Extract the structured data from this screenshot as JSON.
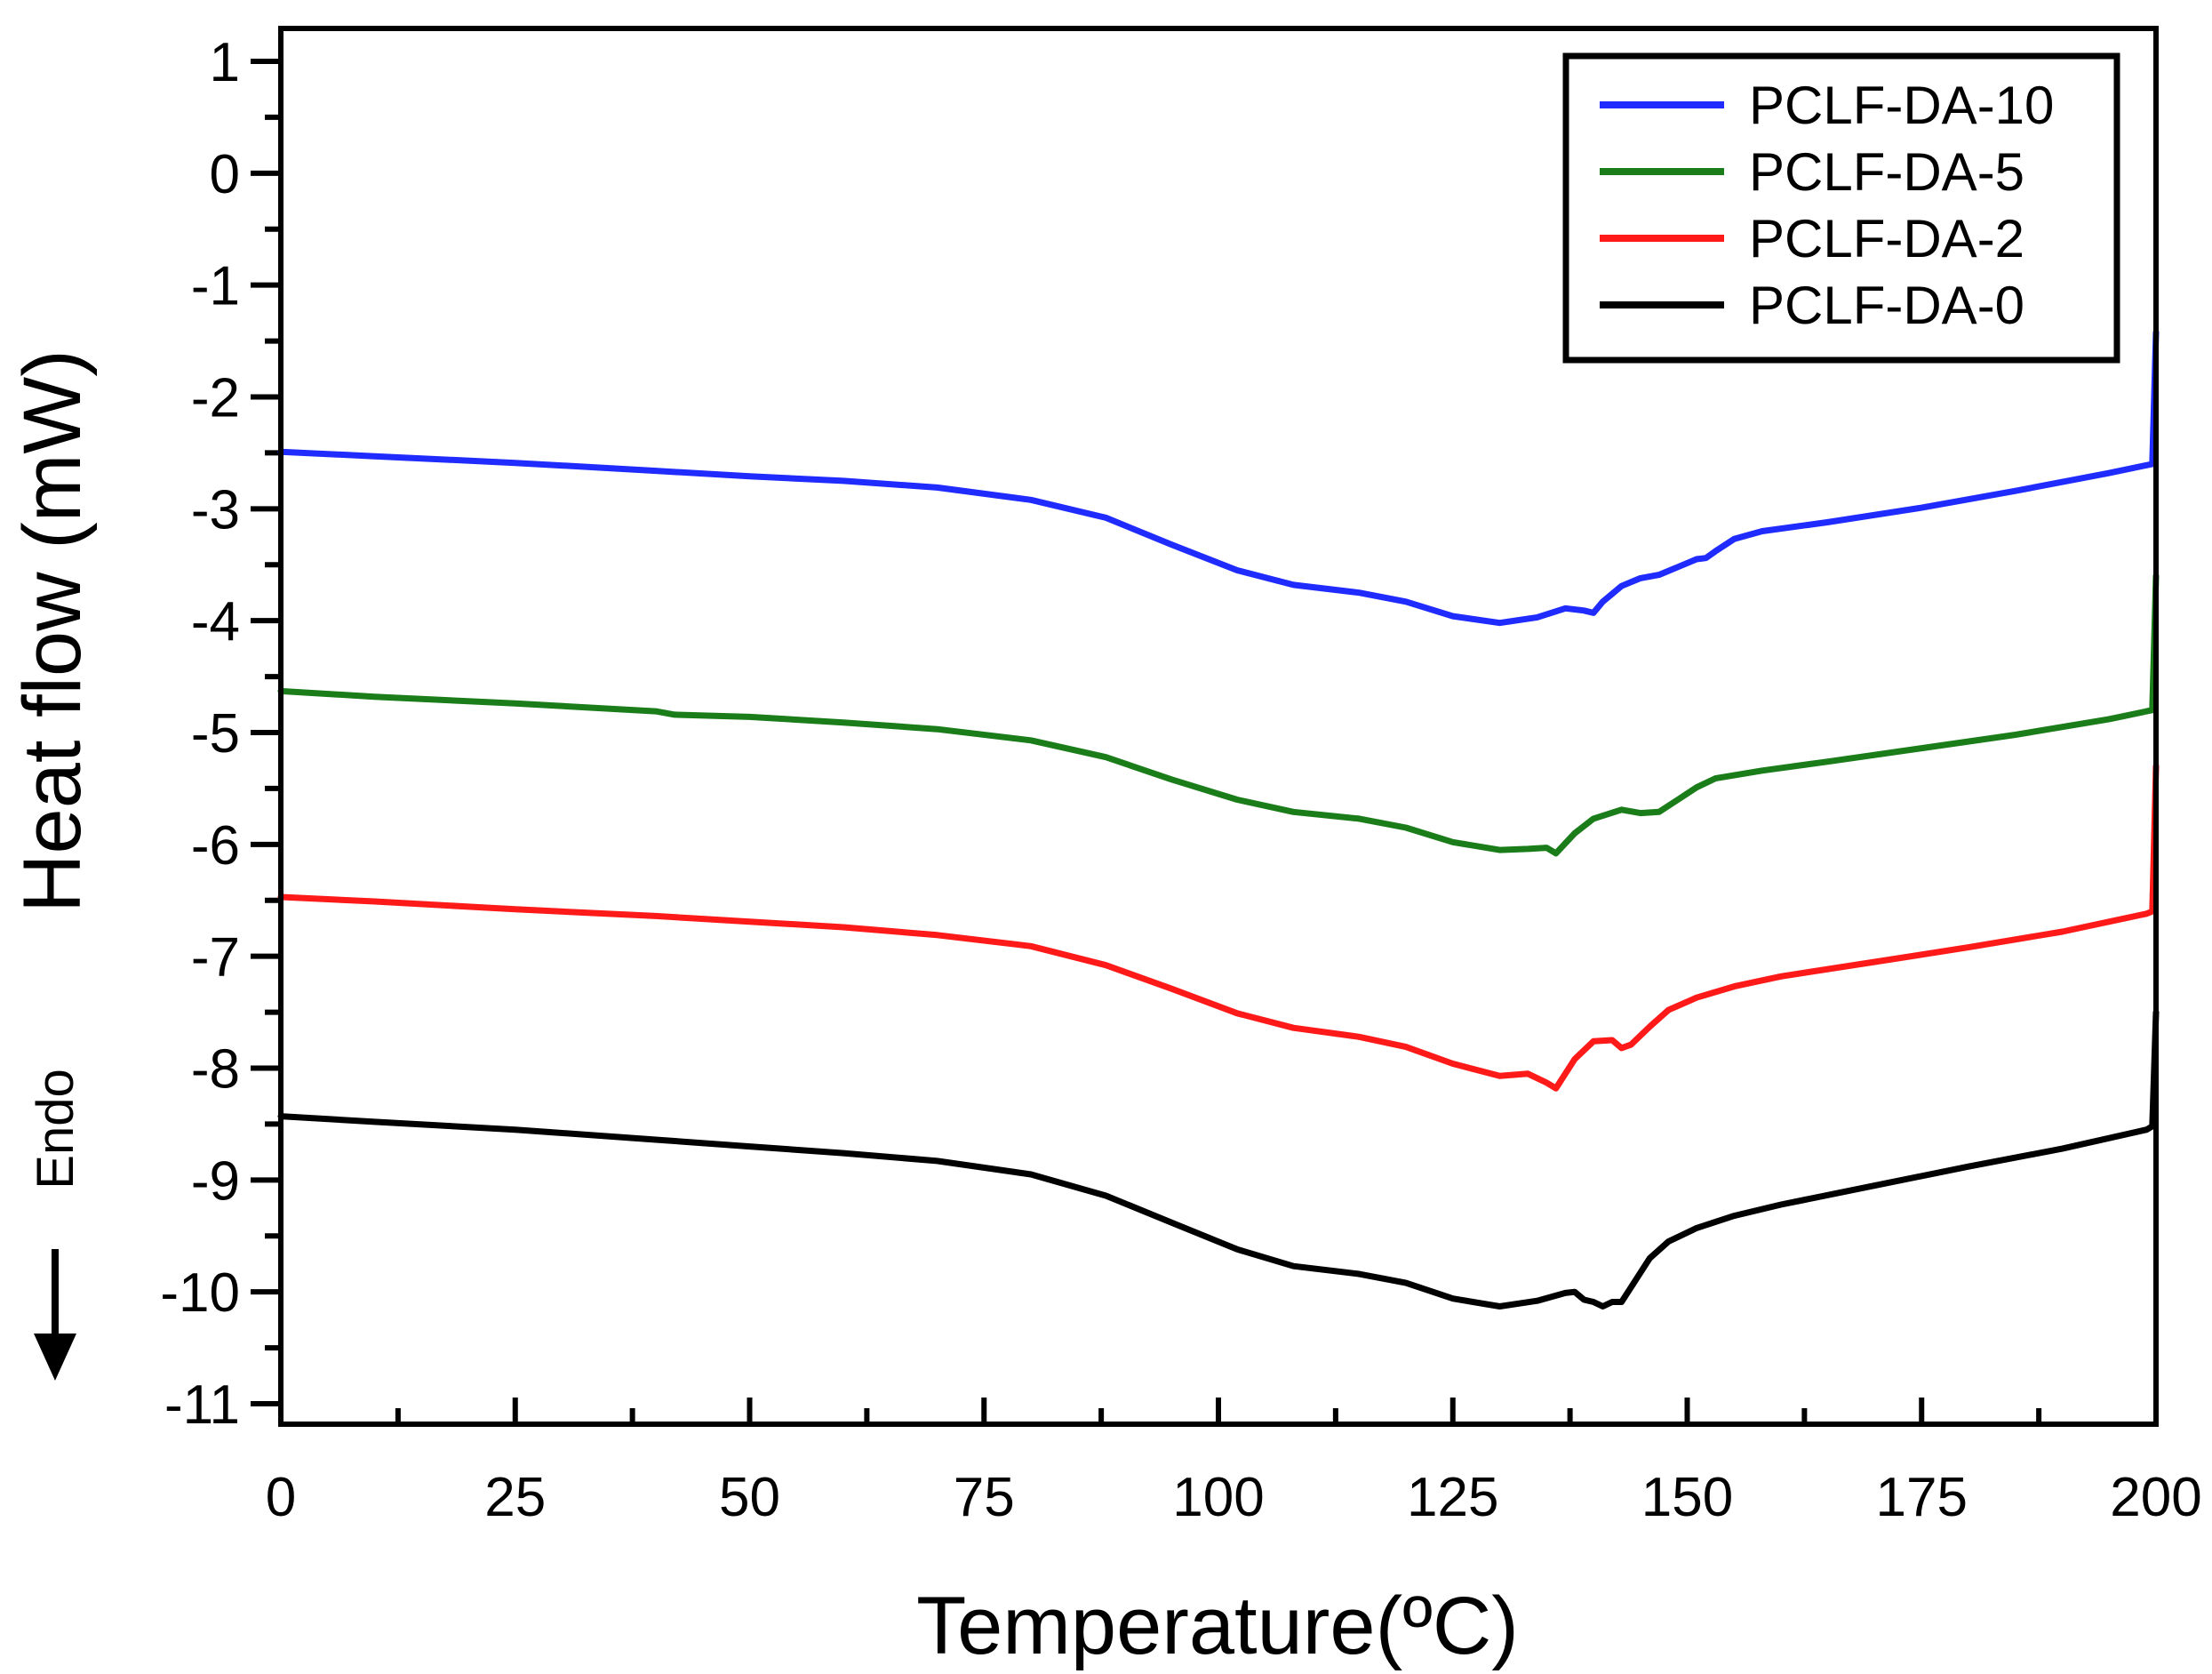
{
  "chart_data": {
    "type": "line",
    "title": "",
    "xlabel": "Temperature(ºC)",
    "ylabel": "Heat flow (mW)",
    "annotation": "Endo",
    "xlim": [
      0,
      200
    ],
    "ylim": [
      -11,
      1
    ],
    "x_ticks": [
      "0",
      "25",
      "50",
      "75",
      "100",
      "125",
      "150",
      "175",
      "200"
    ],
    "y_ticks": [
      "1",
      "0",
      "-1",
      "-2",
      "-3",
      "-4",
      "-5",
      "-6",
      "-7",
      "-8",
      "-9",
      "-10",
      "-11"
    ],
    "legend_position": "top-right",
    "series": [
      {
        "name": "PCLF-DA-10",
        "color": "#1f2bff",
        "points": [
          [
            0,
            -2.49
          ],
          [
            10,
            -2.53
          ],
          [
            25,
            -2.59
          ],
          [
            40,
            -2.66
          ],
          [
            50,
            -2.71
          ],
          [
            60,
            -2.75
          ],
          [
            70,
            -2.81
          ],
          [
            80,
            -2.92
          ],
          [
            88,
            -3.08
          ],
          [
            95,
            -3.32
          ],
          [
            102,
            -3.55
          ],
          [
            108,
            -3.68
          ],
          [
            115,
            -3.75
          ],
          [
            120,
            -3.83
          ],
          [
            125,
            -3.96
          ],
          [
            130,
            -4.02
          ],
          [
            134,
            -3.97
          ],
          [
            137,
            -3.89
          ],
          [
            139,
            -3.91
          ],
          [
            140,
            -3.93
          ],
          [
            141,
            -3.83
          ],
          [
            143,
            -3.69
          ],
          [
            145,
            -3.62
          ],
          [
            147,
            -3.59
          ],
          [
            149,
            -3.52
          ],
          [
            151,
            -3.45
          ],
          [
            152,
            -3.44
          ],
          [
            153,
            -3.38
          ],
          [
            155,
            -3.27
          ],
          [
            158,
            -3.2
          ],
          [
            165,
            -3.12
          ],
          [
            175,
            -2.99
          ],
          [
            185,
            -2.84
          ],
          [
            195,
            -2.68
          ],
          [
            199,
            -2.61
          ],
          [
            199.6,
            -2.6
          ],
          [
            200,
            -1.42
          ]
        ]
      },
      {
        "name": "PCLF-DA-5",
        "color": "#1a7d1a",
        "points": [
          [
            0,
            -4.63
          ],
          [
            10,
            -4.68
          ],
          [
            25,
            -4.74
          ],
          [
            40,
            -4.81
          ],
          [
            42,
            -4.84
          ],
          [
            50,
            -4.86
          ],
          [
            60,
            -4.91
          ],
          [
            70,
            -4.97
          ],
          [
            80,
            -5.07
          ],
          [
            88,
            -5.22
          ],
          [
            95,
            -5.42
          ],
          [
            102,
            -5.6
          ],
          [
            108,
            -5.71
          ],
          [
            115,
            -5.77
          ],
          [
            120,
            -5.85
          ],
          [
            125,
            -5.98
          ],
          [
            130,
            -6.05
          ],
          [
            133,
            -6.04
          ],
          [
            135,
            -6.03
          ],
          [
            136,
            -6.08
          ],
          [
            138,
            -5.9
          ],
          [
            140,
            -5.77
          ],
          [
            143,
            -5.69
          ],
          [
            145,
            -5.72
          ],
          [
            147,
            -5.71
          ],
          [
            149,
            -5.6
          ],
          [
            151,
            -5.49
          ],
          [
            153,
            -5.41
          ],
          [
            158,
            -5.34
          ],
          [
            165,
            -5.26
          ],
          [
            175,
            -5.14
          ],
          [
            185,
            -5.02
          ],
          [
            195,
            -4.88
          ],
          [
            199,
            -4.81
          ],
          [
            199.6,
            -4.8
          ],
          [
            200,
            -3.6
          ]
        ]
      },
      {
        "name": "PCLF-DA-2",
        "color": "#ff1a1a",
        "points": [
          [
            0,
            -6.47
          ],
          [
            10,
            -6.51
          ],
          [
            25,
            -6.58
          ],
          [
            40,
            -6.64
          ],
          [
            50,
            -6.69
          ],
          [
            60,
            -6.74
          ],
          [
            70,
            -6.81
          ],
          [
            80,
            -6.91
          ],
          [
            88,
            -7.08
          ],
          [
            95,
            -7.29
          ],
          [
            102,
            -7.51
          ],
          [
            108,
            -7.64
          ],
          [
            115,
            -7.72
          ],
          [
            120,
            -7.81
          ],
          [
            125,
            -7.96
          ],
          [
            130,
            -8.07
          ],
          [
            133,
            -8.05
          ],
          [
            135,
            -8.13
          ],
          [
            136,
            -8.18
          ],
          [
            138,
            -7.92
          ],
          [
            140,
            -7.76
          ],
          [
            142,
            -7.75
          ],
          [
            143,
            -7.82
          ],
          [
            144,
            -7.79
          ],
          [
            146,
            -7.63
          ],
          [
            148,
            -7.48
          ],
          [
            151,
            -7.37
          ],
          [
            155,
            -7.27
          ],
          [
            160,
            -7.18
          ],
          [
            170,
            -7.05
          ],
          [
            180,
            -6.92
          ],
          [
            190,
            -6.78
          ],
          [
            199,
            -6.62
          ],
          [
            199.6,
            -6.6
          ],
          [
            200,
            -5.3
          ]
        ]
      },
      {
        "name": "PCLF-DA-0",
        "color": "#000000",
        "points": [
          [
            0,
            -8.43
          ],
          [
            10,
            -8.48
          ],
          [
            25,
            -8.55
          ],
          [
            40,
            -8.64
          ],
          [
            50,
            -8.7
          ],
          [
            60,
            -8.76
          ],
          [
            70,
            -8.83
          ],
          [
            80,
            -8.95
          ],
          [
            88,
            -9.14
          ],
          [
            95,
            -9.38
          ],
          [
            102,
            -9.62
          ],
          [
            108,
            -9.77
          ],
          [
            115,
            -9.84
          ],
          [
            120,
            -9.92
          ],
          [
            125,
            -10.06
          ],
          [
            130,
            -10.13
          ],
          [
            134,
            -10.08
          ],
          [
            137,
            -10.01
          ],
          [
            138,
            -10.0
          ],
          [
            139,
            -10.07
          ],
          [
            140,
            -10.09
          ],
          [
            141,
            -10.13
          ],
          [
            142,
            -10.09
          ],
          [
            143,
            -10.09
          ],
          [
            144,
            -9.96
          ],
          [
            146,
            -9.7
          ],
          [
            148,
            -9.55
          ],
          [
            151,
            -9.43
          ],
          [
            155,
            -9.32
          ],
          [
            160,
            -9.22
          ],
          [
            170,
            -9.05
          ],
          [
            180,
            -8.88
          ],
          [
            190,
            -8.72
          ],
          [
            199,
            -8.55
          ],
          [
            199.6,
            -8.52
          ],
          [
            200,
            -7.5
          ]
        ]
      }
    ]
  }
}
